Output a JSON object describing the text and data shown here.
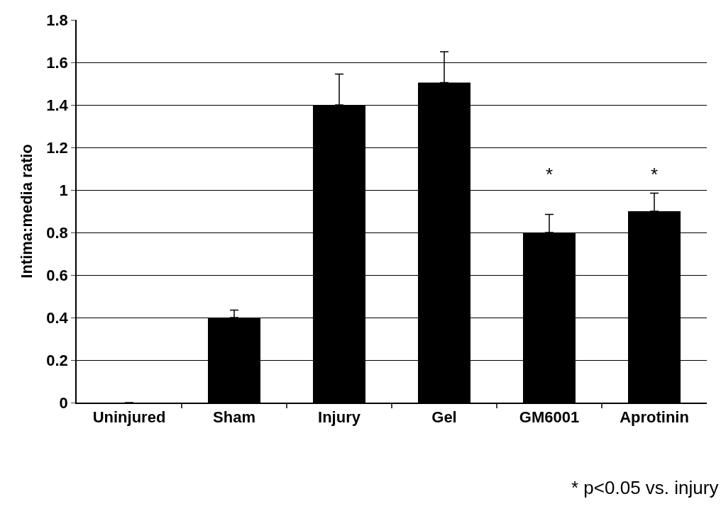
{
  "chart_data": {
    "type": "bar",
    "ylabel": "Intima:media ratio",
    "categories": [
      "Uninjured",
      "Sham",
      "Injury",
      "Gel",
      "GM6001",
      "Aprotinin"
    ],
    "values": [
      0,
      0.4,
      1.4,
      1.505,
      0.8,
      0.9
    ],
    "errors": [
      null,
      [
        0.4,
        0.435
      ],
      [
        1.4,
        1.545
      ],
      [
        1.505,
        1.65
      ],
      [
        0.8,
        0.885
      ],
      [
        0.9,
        0.985
      ]
    ],
    "color": "#000000",
    "ylim": [
      0,
      1.8
    ],
    "yticks": [
      0,
      0.2,
      0.4,
      0.6,
      0.8,
      1,
      1.2,
      1.4,
      1.6,
      1.8
    ],
    "grid": "y",
    "annotations": [
      {
        "text": "*",
        "x": "GM6001",
        "y": 0.885
      },
      {
        "text": "*",
        "x": "Aprotinin",
        "y": 0.985
      },
      "* p<0.05 vs. injury"
    ]
  }
}
